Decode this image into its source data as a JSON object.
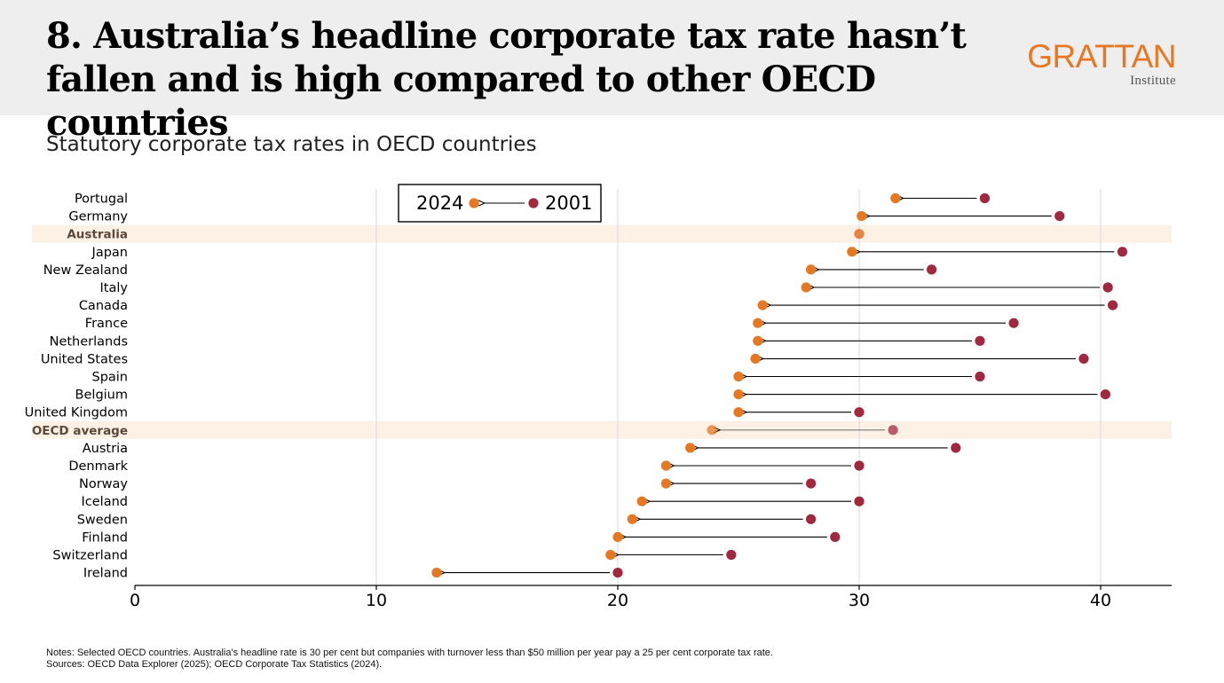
{
  "header": {
    "title_line1": "8. Australia’s headline corporate tax rate hasn’t",
    "title_line2": "fallen and is high compared to other OECD countries",
    "brand_name": "GRATTAN",
    "brand_sub": "Institute"
  },
  "subtitle": "Statutory corporate tax rates in OECD countries",
  "notes": {
    "line1": "Notes: Selected OECD countries. Australia's headline rate is 30 per cent but companies with turnover less than $50 million per year pay a 25 per cent corporate tax rate.",
    "line2": "Sources: OECD Data Explorer (2025); OECD Corporate Tax Statistics (2024)."
  },
  "colors": {
    "y2024": "#e87722",
    "y2001": "#a1283e",
    "highlight_band": "#fdf1e6",
    "grid": "#d9d9d9",
    "text": "#000000"
  },
  "chart_data": {
    "type": "dumbbell",
    "title": "Statutory corporate tax rates in OECD countries",
    "xlabel": "",
    "ylabel": "",
    "xlim": [
      0,
      43
    ],
    "xticks": [
      0,
      10,
      20,
      30,
      40
    ],
    "grid": "vertical",
    "legend": {
      "placement": "top-center",
      "entries": [
        "2024",
        "2001"
      ]
    },
    "highlighted": [
      "Australia",
      "OECD average"
    ],
    "categories": [
      "Portugal",
      "Germany",
      "Australia",
      "Japan",
      "New Zealand",
      "Italy",
      "Canada",
      "France",
      "Netherlands",
      "United States",
      "Spain",
      "Belgium",
      "United Kingdom",
      "OECD average",
      "Austria",
      "Denmark",
      "Norway",
      "Iceland",
      "Sweden",
      "Finland",
      "Switzerland",
      "Ireland"
    ],
    "series": [
      {
        "name": "2024",
        "values": [
          31.5,
          30.1,
          30.0,
          29.7,
          28.0,
          27.8,
          26.0,
          25.8,
          25.8,
          25.7,
          25.0,
          25.0,
          25.0,
          23.9,
          23.0,
          22.0,
          22.0,
          21.0,
          20.6,
          20.0,
          19.7,
          12.5
        ]
      },
      {
        "name": "2001",
        "values": [
          35.2,
          38.3,
          30.0,
          40.9,
          33.0,
          40.3,
          40.5,
          36.4,
          35.0,
          39.3,
          35.0,
          40.2,
          30.0,
          31.4,
          34.0,
          30.0,
          28.0,
          30.0,
          28.0,
          29.0,
          24.7,
          20.0
        ]
      }
    ]
  }
}
